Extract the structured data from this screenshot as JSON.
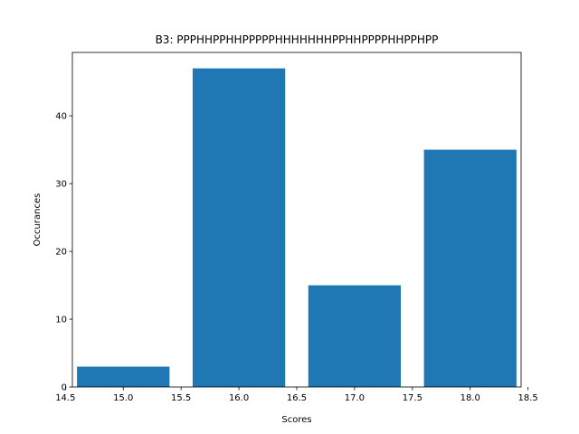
{
  "chart_data": {
    "type": "bar",
    "title": "B3: PPPHHPPHHPPPPPHHHHHHHPPHHPPPPHHPPHPP",
    "xlabel": "Scores",
    "ylabel": "Occurances",
    "x": [
      15.0,
      16.0,
      17.0,
      18.0
    ],
    "values": [
      3,
      47,
      15,
      35
    ],
    "bar_width": 0.8,
    "xlim": [
      14.56,
      18.44
    ],
    "ylim": [
      0,
      49.35
    ],
    "x_ticks": [
      14.5,
      15.0,
      15.5,
      16.0,
      16.5,
      17.0,
      17.5,
      18.0,
      18.5
    ],
    "y_ticks": [
      0,
      10,
      20,
      30,
      40
    ],
    "x_tick_labels": [
      "14.5",
      "15.0",
      "15.5",
      "16.0",
      "16.5",
      "17.0",
      "17.5",
      "18.0",
      "18.5"
    ],
    "y_tick_labels": [
      "0",
      "10",
      "20",
      "30",
      "40"
    ],
    "bar_color": "#1f77b4",
    "grid": false,
    "legend": false
  }
}
